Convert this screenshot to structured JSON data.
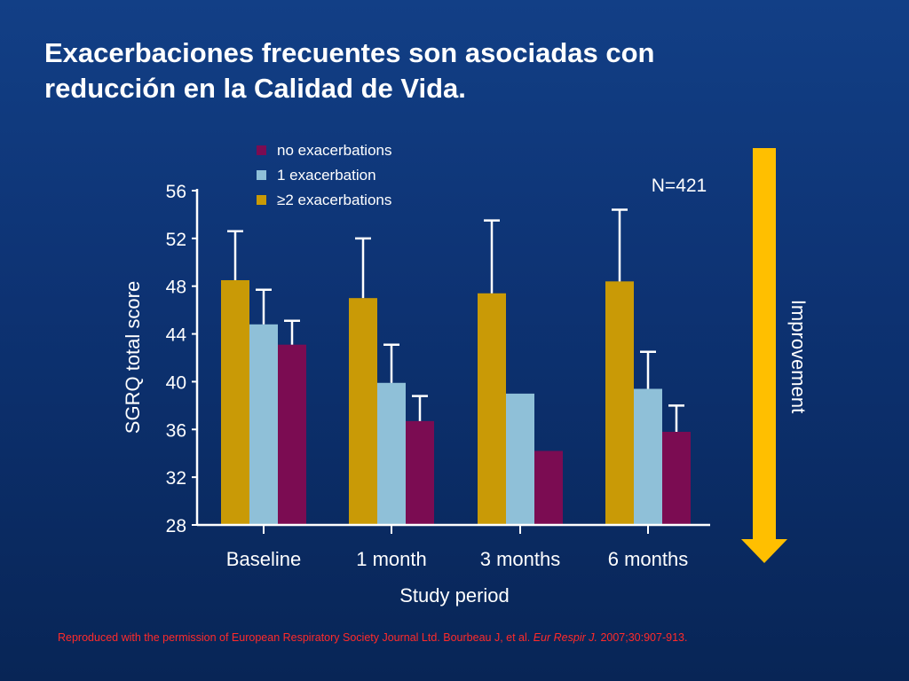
{
  "slide": {
    "title_line1": "Exacerbaciones frecuentes son asociadas con",
    "title_line2": "reducción en la Calidad de Vida.",
    "footnote_text": "Reproduced with the permission of European Respiratory Society Journal Ltd. Bourbeau J, et al. ",
    "footnote_journal": "Eur Respir J.",
    "footnote_ref": " 2007;30:907-913."
  },
  "colors": {
    "no_exacerbations": "#7b0c52",
    "one_exacerbation": "#8fc0d8",
    "two_plus_exacerbations": "#c99a06",
    "arrow": "#ffbf00",
    "text": "#ffffff"
  },
  "chart_data": {
    "type": "bar",
    "xlabel": "Study period",
    "ylabel": "SGRQ total score",
    "ylim": [
      28,
      56
    ],
    "yticks": [
      28,
      32,
      36,
      40,
      44,
      48,
      52,
      56
    ],
    "categories": [
      "Baseline",
      "1 month",
      "3 months",
      "6 months"
    ],
    "annotation": "N=421",
    "arrow_label": "Improvement",
    "legend_position": "top",
    "legend_order": [
      "no exacerbations",
      "1 exacerbation",
      "≥2 exacerbations"
    ],
    "series": [
      {
        "name": "≥2 exacerbations",
        "color_key": "two_plus_exacerbations",
        "values": [
          48.5,
          47.0,
          47.4,
          48.4
        ],
        "errors": [
          4.1,
          5.0,
          6.1,
          6.0
        ]
      },
      {
        "name": "1 exacerbation",
        "color_key": "one_exacerbation",
        "values": [
          44.8,
          39.9,
          39.0,
          39.4
        ],
        "errors": [
          2.9,
          3.2,
          null,
          3.1
        ]
      },
      {
        "name": "no exacerbations",
        "color_key": "no_exacerbations",
        "values": [
          43.1,
          36.7,
          34.2,
          35.8
        ],
        "errors": [
          2.0,
          2.1,
          null,
          2.2
        ]
      }
    ]
  }
}
